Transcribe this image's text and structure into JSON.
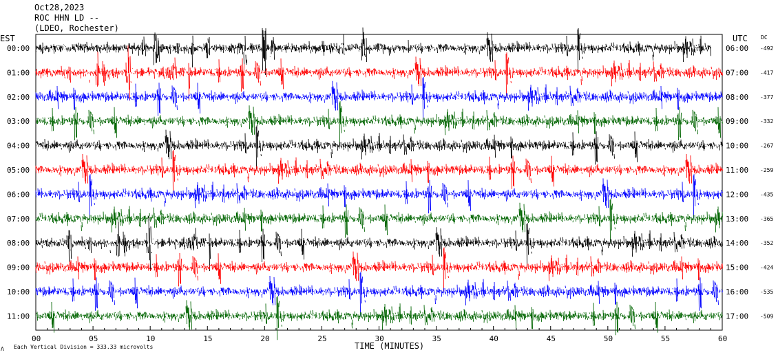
{
  "header": {
    "date": "Oct28,2023",
    "station": "ROC HHN LD --",
    "network": "(LDEO, Rochester)"
  },
  "axes": {
    "left_label": "EST",
    "right_label": "UTC",
    "dc_label": "DC",
    "xlabel": "TIME (MINUTES)"
  },
  "footer": {
    "symbol": "Λ",
    "scale_text": "Each Vertical Division =  333.33 microvolts"
  },
  "colors": {
    "traces": [
      "#000000",
      "#ff0000",
      "#0000ff",
      "#006400"
    ],
    "frame": "#000000",
    "background": "#ffffff"
  },
  "chart_data": {
    "type": "line",
    "subtype": "helicorder",
    "xlim": [
      0,
      60
    ],
    "x_ticks": [
      "00",
      "05",
      "10",
      "15",
      "20",
      "25",
      "30",
      "35",
      "40",
      "45",
      "50",
      "55",
      "60"
    ],
    "rows": [
      {
        "est": "00:00",
        "utc": "06:00",
        "dc": "-492",
        "color": "#000000",
        "end_minute": 59
      },
      {
        "est": "01:00",
        "utc": "07:00",
        "dc": "-417",
        "color": "#ff0000",
        "end_minute": 60
      },
      {
        "est": "02:00",
        "utc": "08:00",
        "dc": "-377",
        "color": "#0000ff",
        "end_minute": 60
      },
      {
        "est": "03:00",
        "utc": "09:00",
        "dc": "-332",
        "color": "#006400",
        "end_minute": 60
      },
      {
        "est": "04:00",
        "utc": "10:00",
        "dc": "-267",
        "color": "#000000",
        "end_minute": 60
      },
      {
        "est": "05:00",
        "utc": "11:00",
        "dc": "-259",
        "color": "#ff0000",
        "end_minute": 60
      },
      {
        "est": "06:00",
        "utc": "12:00",
        "dc": "-435",
        "color": "#0000ff",
        "end_minute": 60
      },
      {
        "est": "07:00",
        "utc": "13:00",
        "dc": "-365",
        "color": "#006400",
        "end_minute": 60
      },
      {
        "est": "08:00",
        "utc": "14:00",
        "dc": "-352",
        "color": "#000000",
        "end_minute": 60
      },
      {
        "est": "09:00",
        "utc": "15:00",
        "dc": "-424",
        "color": "#ff0000",
        "end_minute": 60
      },
      {
        "est": "10:00",
        "utc": "16:00",
        "dc": "-535",
        "color": "#0000ff",
        "end_minute": 60
      },
      {
        "est": "11:00",
        "utc": "17:00",
        "dc": "-509",
        "color": "#006400",
        "end_minute": 60
      }
    ],
    "scale_microvolts_per_division": 333.33
  }
}
